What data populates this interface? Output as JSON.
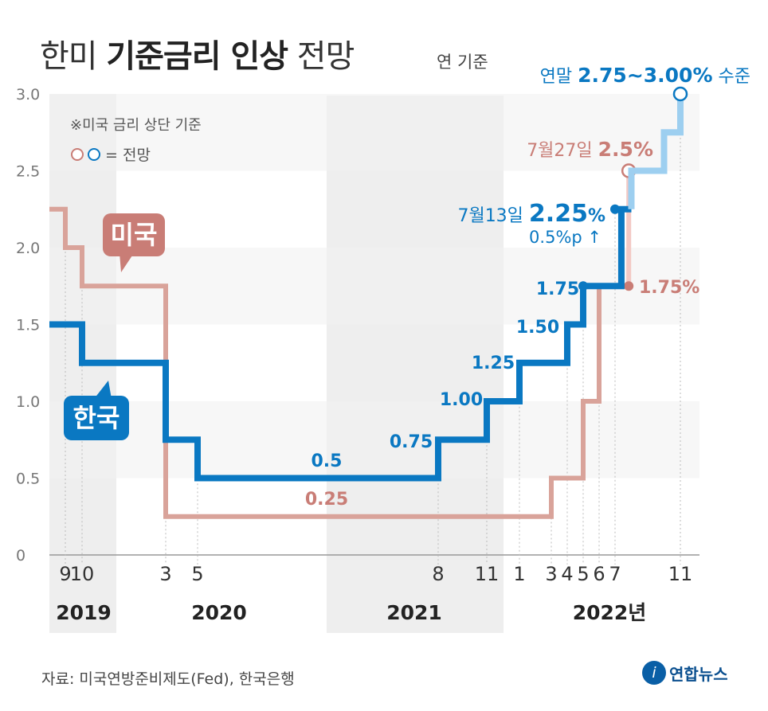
{
  "title_regular_1": "한미",
  "title_bold": "기준금리 인상",
  "title_regular_2": "전망",
  "unit_note": "연 기준",
  "note_line": "※미국 금리 상단 기준",
  "legend_label": "= 전망",
  "source": "자료: 미국연방준비제도(Fed), 한국은행",
  "logo": "연합뉴스",
  "colors": {
    "korea": "#0a78c2",
    "korea_forecast": "#9dcff0",
    "us": "#d9a39a",
    "us_forecast": "#f3c9c4",
    "us_label": "#c97d76",
    "band": "#eeeeee"
  },
  "chart_data": {
    "type": "line",
    "step": true,
    "ylim": [
      0,
      3.0
    ],
    "y_ticks": [
      "0",
      "0.5",
      "1.0",
      "1.5",
      "2.0",
      "2.5",
      "3.0"
    ],
    "x_tick_labels": [
      "9",
      "10",
      "3",
      "5",
      "8",
      "11",
      "1",
      "3",
      "4",
      "5",
      "6",
      "7",
      "11"
    ],
    "year_labels": [
      "2019",
      "2020",
      "2021",
      "2022년"
    ],
    "series": [
      {
        "name": "한국",
        "values": [
          {
            "x": "2019-07",
            "y": 1.5
          },
          {
            "x": "2019-10",
            "y": 1.25
          },
          {
            "x": "2020-03",
            "y": 0.75
          },
          {
            "x": "2020-05",
            "y": 0.5
          },
          {
            "x": "2021-08",
            "y": 0.75
          },
          {
            "x": "2021-11",
            "y": 1.0
          },
          {
            "x": "2022-01",
            "y": 1.25
          },
          {
            "x": "2022-04",
            "y": 1.5
          },
          {
            "x": "2022-05",
            "y": 1.75
          },
          {
            "x": "2022-07-13",
            "y": 2.25
          },
          {
            "x": "2022-08",
            "y": 2.5,
            "forecast": true
          },
          {
            "x": "2022-10",
            "y": 2.75,
            "forecast": true
          },
          {
            "x": "2022-11",
            "y": 3.0,
            "forecast": true
          }
        ],
        "point_labels": [
          "0.5",
          "0.75",
          "1.00",
          "1.25",
          "1.50",
          "1.75"
        ]
      },
      {
        "name": "미국",
        "values": [
          {
            "x": "2019-07",
            "y": 2.25
          },
          {
            "x": "2019-09",
            "y": 2.0
          },
          {
            "x": "2019-10",
            "y": 1.75
          },
          {
            "x": "2020-03",
            "y": 0.25
          },
          {
            "x": "2022-03",
            "y": 0.5
          },
          {
            "x": "2022-05",
            "y": 1.0
          },
          {
            "x": "2022-06",
            "y": 1.75
          },
          {
            "x": "2022-07-27",
            "y": 2.5,
            "forecast": true
          }
        ],
        "point_labels": [
          "0.25",
          "1.75%"
        ]
      }
    ],
    "annotations": {
      "korea_jul13_prefix": "7월13일",
      "korea_jul13_value": "2.25",
      "korea_jul13_pct": "%",
      "korea_hike": "0.5%p",
      "korea_hike_arrow": "↑",
      "us_jul27_prefix": "7월27일",
      "us_jul27_value": "2.5%",
      "year_end_prefix": "연말",
      "year_end_value": "2.75~3.00%",
      "year_end_suffix": "수준"
    }
  }
}
